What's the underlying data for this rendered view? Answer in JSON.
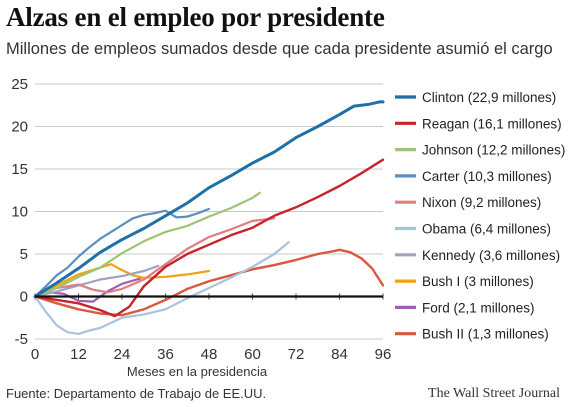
{
  "chart_data": {
    "type": "line",
    "title": "Alzas en el empleo por presidente",
    "subtitle": "Millones de empleos sumados desde que cada presidente asumió el cargo",
    "xlabel": "Meses en la presidencia",
    "ylabel": "",
    "xlim": [
      0,
      96
    ],
    "ylim": [
      -5,
      25
    ],
    "xticks": [
      0,
      12,
      24,
      36,
      48,
      60,
      72,
      84,
      96
    ],
    "yticks": [
      -5,
      0,
      5,
      10,
      15,
      20,
      25
    ],
    "grid": "horizontal",
    "legend": "right",
    "series": [
      {
        "name": "Clinton (22,9 millones)",
        "color": "#1f6fa8",
        "width": 3,
        "x": [
          0,
          6,
          12,
          18,
          24,
          30,
          36,
          42,
          48,
          54,
          60,
          66,
          72,
          78,
          84,
          88,
          92,
          95,
          96
        ],
        "y": [
          0,
          1.6,
          3.3,
          5.2,
          6.7,
          8.0,
          9.5,
          11.0,
          12.8,
          14.2,
          15.7,
          17.0,
          18.7,
          20.0,
          21.4,
          22.4,
          22.6,
          22.9,
          22.9
        ]
      },
      {
        "name": "Reagan (16,1 millones)",
        "color": "#c8232c",
        "width": 2.4,
        "x": [
          0,
          6,
          12,
          18,
          22,
          26,
          30,
          36,
          42,
          48,
          54,
          60,
          66,
          72,
          78,
          84,
          90,
          96
        ],
        "y": [
          0,
          -0.4,
          -0.8,
          -1.6,
          -2.3,
          -1.2,
          1.2,
          3.5,
          5.0,
          6.1,
          7.2,
          8.1,
          9.5,
          10.5,
          11.7,
          13.0,
          14.5,
          16.1
        ]
      },
      {
        "name": "Johnson (12,2 millones)",
        "color": "#9cc476",
        "width": 2.2,
        "x": [
          0,
          6,
          12,
          18,
          24,
          30,
          36,
          42,
          48,
          54,
          60,
          62
        ],
        "y": [
          0,
          1.0,
          2.3,
          3.4,
          5.1,
          6.5,
          7.6,
          8.3,
          9.4,
          10.4,
          11.6,
          12.2
        ]
      },
      {
        "name": "Carter (10,3 millones)",
        "color": "#5a8fc0",
        "width": 2.2,
        "x": [
          0,
          3,
          6,
          9,
          12,
          15,
          18,
          21,
          24,
          27,
          30,
          33,
          36,
          39,
          42,
          45,
          48
        ],
        "y": [
          0,
          1.2,
          2.5,
          3.4,
          4.7,
          5.8,
          6.8,
          7.6,
          8.4,
          9.2,
          9.6,
          9.8,
          10.1,
          9.3,
          9.4,
          9.8,
          10.3
        ]
      },
      {
        "name": "Nixon (9,2 millones)",
        "color": "#e07d80",
        "width": 2.2,
        "x": [
          0,
          6,
          12,
          16,
          20,
          24,
          30,
          36,
          42,
          48,
          54,
          60,
          66
        ],
        "y": [
          0,
          1.0,
          1.4,
          0.8,
          0.5,
          0.9,
          2.0,
          3.8,
          5.6,
          7.0,
          7.9,
          8.9,
          9.2
        ]
      },
      {
        "name": "Obama (6,4 millones)",
        "color": "#a8c3de",
        "width": 2.2,
        "x": [
          0,
          3,
          6,
          9,
          12,
          15,
          18,
          24,
          30,
          36,
          42,
          48,
          54,
          60,
          66,
          70
        ],
        "y": [
          0,
          -1.8,
          -3.4,
          -4.2,
          -4.4,
          -4.0,
          -3.7,
          -2.5,
          -2.1,
          -1.5,
          -0.2,
          1.0,
          2.2,
          3.5,
          5.0,
          6.4
        ]
      },
      {
        "name": "Kennedy (3,6 millones)",
        "color": "#9da3c2",
        "width": 2.2,
        "x": [
          0,
          6,
          12,
          18,
          24,
          30,
          34
        ],
        "y": [
          0,
          0.6,
          1.3,
          2.0,
          2.4,
          3.0,
          3.6
        ]
      },
      {
        "name": "Bush I (3 millones)",
        "color": "#f2a30f",
        "width": 2.2,
        "x": [
          0,
          6,
          12,
          18,
          21,
          24,
          27,
          30,
          36,
          42,
          48
        ],
        "y": [
          0,
          1.3,
          2.6,
          3.4,
          3.8,
          3.1,
          2.5,
          2.2,
          2.3,
          2.6,
          3.0
        ]
      },
      {
        "name": "Ford (2,1 millones)",
        "color": "#9e5fb2",
        "width": 2.2,
        "x": [
          0,
          4,
          8,
          12,
          16,
          20,
          24,
          29
        ],
        "y": [
          0,
          0.5,
          0.3,
          -0.5,
          -0.6,
          0.6,
          1.5,
          2.1
        ]
      },
      {
        "name": "Bush II (1,3 millones)",
        "color": "#d9583f",
        "width": 2.4,
        "x": [
          0,
          6,
          12,
          18,
          24,
          30,
          36,
          42,
          48,
          54,
          60,
          66,
          72,
          78,
          82,
          84,
          87,
          90,
          93,
          96
        ],
        "y": [
          0,
          -0.8,
          -1.5,
          -2.0,
          -2.2,
          -1.5,
          -0.4,
          0.9,
          1.8,
          2.5,
          3.2,
          3.7,
          4.3,
          5.0,
          5.3,
          5.5,
          5.2,
          4.5,
          3.3,
          1.3
        ]
      }
    ]
  },
  "footer": {
    "source": "Fuente: Departamento de Trabajo de EE.UU.",
    "publisher": "The Wall Street Journal"
  }
}
